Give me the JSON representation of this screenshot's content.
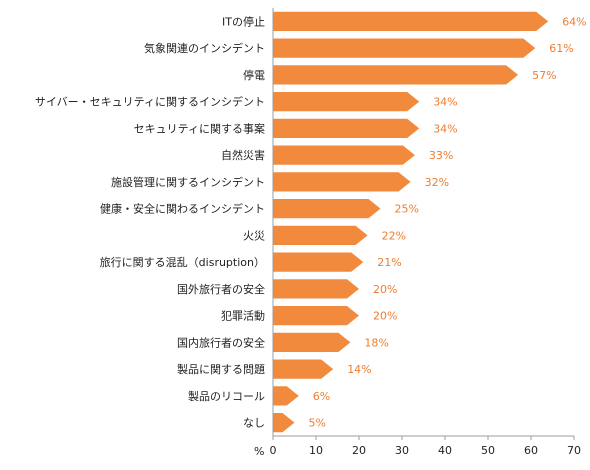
{
  "chart_data": {
    "type": "bar",
    "orientation": "horizontal",
    "bar_color": "#F28A3D",
    "label_color": "#ED7D31",
    "axis_color": "#9E9E9E",
    "categories": [
      "ITの停止",
      "気象関連のインシデント",
      "停電",
      "サイバー・セキュリティに関するインシデント",
      "セキュリティに関する事案",
      "自然災害",
      "施設管理に関するインシデント",
      "健康・安全に関わるインシデント",
      "火災",
      "旅行に関する混乱（disruption）",
      "国外旅行者の安全",
      "犯罪活動",
      "国内旅行者の安全",
      "製品に関する問題",
      "製品のリコール",
      "なし"
    ],
    "values": [
      64,
      61,
      57,
      34,
      34,
      33,
      32,
      25,
      22,
      21,
      20,
      20,
      18,
      14,
      6,
      5
    ],
    "value_labels": [
      "64%",
      "61%",
      "57%",
      "34%",
      "34%",
      "33%",
      "32%",
      "25%",
      "22%",
      "21%",
      "20%",
      "20%",
      "18%",
      "14%",
      "6%",
      "5%"
    ],
    "xlim": [
      0,
      70
    ],
    "xticks": [
      0,
      10,
      20,
      30,
      40,
      50,
      60,
      70
    ],
    "x_unit": "%",
    "grid": false
  }
}
